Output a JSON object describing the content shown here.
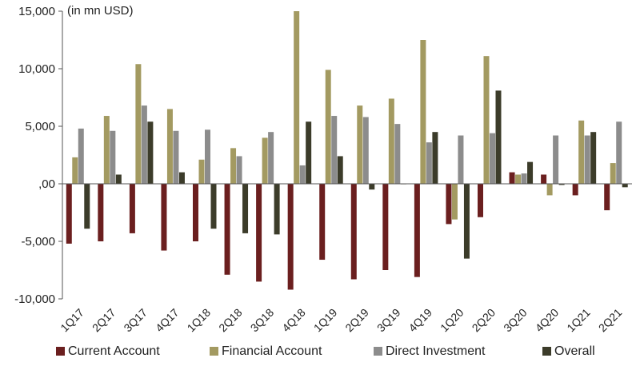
{
  "chart_data": {
    "type": "bar",
    "unit_label": "(in mn USD)",
    "xlabel": "",
    "ylabel": "",
    "ylim": [
      -10000,
      15000
    ],
    "yticks": [
      15000,
      10000,
      5000,
      0,
      -5000,
      -10000
    ],
    "ytick_labels": [
      "15,000",
      "10,000",
      "5,000",
      ",00",
      "-5,000",
      "-10,000"
    ],
    "grid": false,
    "legend_position": "bottom",
    "categories": [
      "1Q17",
      "2Q17",
      "3Q17",
      "4Q17",
      "1Q18",
      "2Q18",
      "3Q18",
      "4Q18",
      "1Q19",
      "2Q19",
      "3Q19",
      "4Q19",
      "1Q20",
      "2Q20",
      "3Q20",
      "4Q20",
      "1Q21",
      "2Q21"
    ],
    "series": [
      {
        "name": "Current Account",
        "color": "#6b1f1f",
        "values": [
          -5200,
          -5000,
          -4300,
          -5800,
          -5000,
          -7900,
          -8500,
          -9200,
          -6600,
          -8300,
          -7500,
          -8100,
          -3500,
          -2900,
          1000,
          800,
          -1000,
          -2300
        ]
      },
      {
        "name": "Financial Account",
        "color": "#a39a61",
        "values": [
          2300,
          5900,
          10400,
          6500,
          2100,
          3100,
          4000,
          15000,
          9900,
          6800,
          7400,
          12500,
          -3100,
          11100,
          800,
          -1000,
          5500,
          1800
        ]
      },
      {
        "name": "Direct Investment",
        "color": "#8c8c8c",
        "values": [
          4800,
          4600,
          6800,
          4600,
          4700,
          2400,
          4500,
          1600,
          5900,
          5800,
          5200,
          3600,
          4200,
          4400,
          900,
          4200,
          4200,
          5400
        ]
      },
      {
        "name": "Overall",
        "color": "#3c3c2a",
        "values": [
          -3900,
          800,
          5400,
          1000,
          -3900,
          -4300,
          -4400,
          5400,
          2400,
          -500,
          0,
          4500,
          -6500,
          8100,
          1900,
          -100,
          4500,
          -300
        ]
      }
    ]
  }
}
